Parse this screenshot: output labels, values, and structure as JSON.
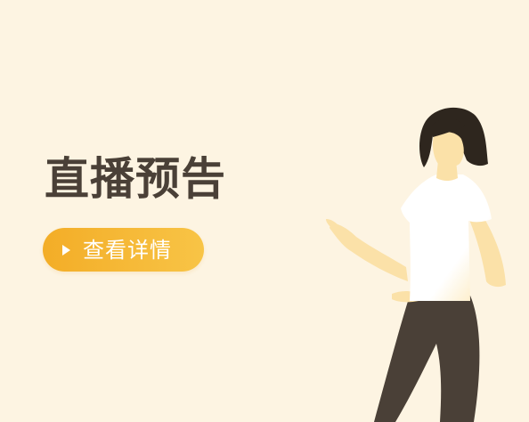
{
  "banner": {
    "title": "直播预告",
    "cta": {
      "label": "查看详情",
      "icon": "play-icon"
    },
    "illustration": "woman-pointing-illustration"
  },
  "colors": {
    "background": "#fdf4e2",
    "title_text": "#4a4037",
    "button_start": "#f3ad27",
    "button_end": "#f8c446",
    "hair": "#2e261e",
    "skin": "#fbe1a8",
    "shirt": "#ffffff",
    "pants": "#4a4037"
  }
}
